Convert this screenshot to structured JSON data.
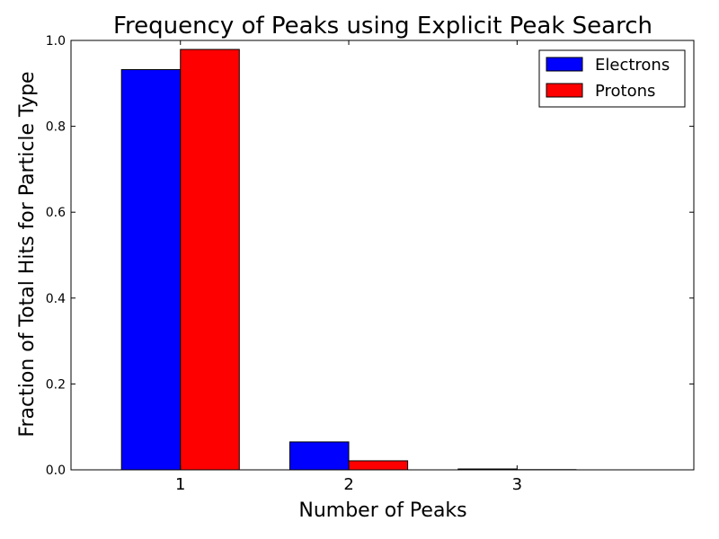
{
  "chart_data": {
    "type": "bar",
    "title": "Frequency of Peaks using Explicit Peak Search",
    "xlabel": "Number of Peaks",
    "ylabel": "Fraction of Total Hits for Particle Type",
    "categories": [
      "1",
      "2",
      "3"
    ],
    "x": [
      1,
      2,
      3
    ],
    "xlim": [
      0.35,
      4.05
    ],
    "ylim": [
      0,
      1.0
    ],
    "yticks": [
      0.0,
      0.2,
      0.4,
      0.6,
      0.8,
      1.0
    ],
    "ytick_labels": [
      "0.0",
      "0.2",
      "0.4",
      "0.6",
      "0.8",
      "1.0"
    ],
    "bar_width": 0.35,
    "series": [
      {
        "name": "Electrons",
        "color": "#0000ff",
        "values": [
          0.932,
          0.065,
          0.002
        ]
      },
      {
        "name": "Protons",
        "color": "#ff0000",
        "values": [
          0.979,
          0.021,
          0.0005
        ]
      }
    ],
    "legend_position": "top-right",
    "grid": false
  }
}
